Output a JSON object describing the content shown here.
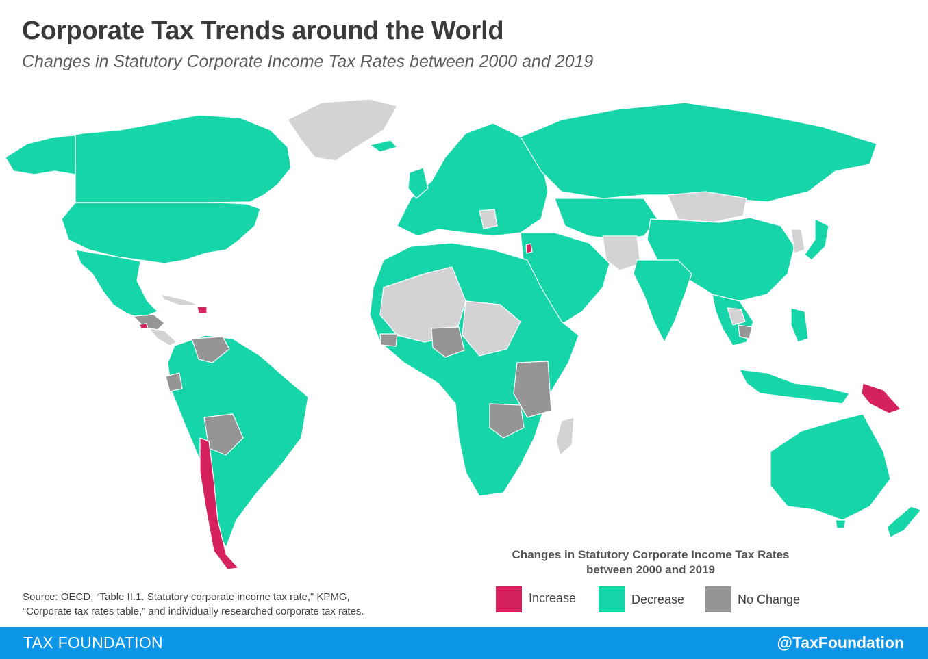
{
  "header": {
    "title": "Corporate Tax Trends around the World",
    "subtitle": "Changes in Statutory Corporate Income Tax Rates between 2000 and 2019"
  },
  "colors": {
    "increase": "#d6215f",
    "decrease": "#16d6a9",
    "no_change": "#959595",
    "no_data": "#d3d3d5",
    "footer": "#0d95e8"
  },
  "legend": {
    "title_line1": "Changes in Statutory Corporate Income Tax Rates",
    "title_line2": "between 2000 and 2019",
    "items": [
      {
        "label": "Increase",
        "color": "#d6215f"
      },
      {
        "label": "Decrease",
        "color": "#16d6a9"
      },
      {
        "label": "No Change",
        "color": "#959595"
      }
    ]
  },
  "source": {
    "line1": "Source: OECD, “Table II.1. Statutory corporate income tax rate,” KPMG,",
    "line2": "“Corporate tax rates table,” and individually researched corporate tax rates."
  },
  "footer": {
    "left": "TAX FOUNDATION",
    "right": "@TaxFoundation"
  }
}
